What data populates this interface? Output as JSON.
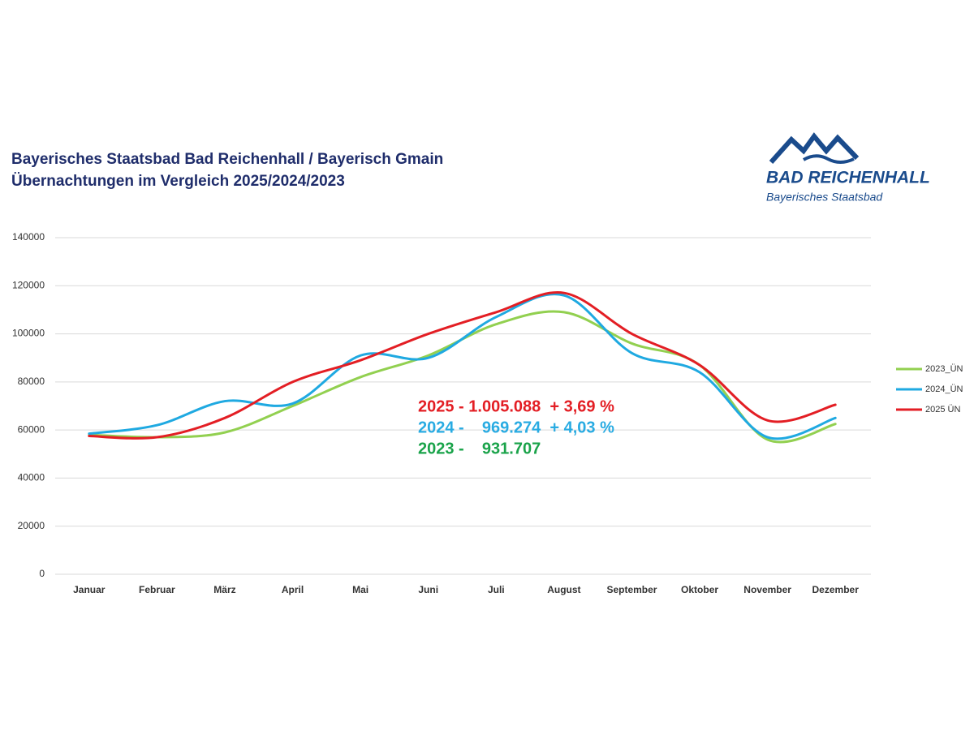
{
  "chart_data": {
    "type": "line",
    "title": "Bayerisches Staatsbad Bad Reichenhall / Bayerisch Gmain",
    "subtitle": "Übernachtungen im Vergleich 2025/2024/2023",
    "categories": [
      "Januar",
      "Februar",
      "März",
      "April",
      "Mai",
      "Juni",
      "Juli",
      "August",
      "September",
      "Oktober",
      "November",
      "Dezember"
    ],
    "series": [
      {
        "name": "2023_ÜN",
        "color": "#92d050",
        "values": [
          58000,
          57000,
          59000,
          70000,
          82000,
          91000,
          104000,
          109000,
          96000,
          87000,
          56000,
          62500
        ]
      },
      {
        "name": "2024_ÜN",
        "color": "#1fa9e1",
        "values": [
          58500,
          62000,
          72000,
          71000,
          91000,
          90000,
          107000,
          116000,
          92000,
          84000,
          57000,
          65000
        ]
      },
      {
        "name": "2025 ÜN",
        "color": "#e31e24",
        "values": [
          57500,
          57000,
          65000,
          80000,
          89000,
          100000,
          109000,
          117000,
          100000,
          87000,
          64000,
          70500
        ]
      }
    ],
    "ylim": [
      0,
      140000
    ],
    "yticks": [
      0,
      20000,
      40000,
      60000,
      80000,
      100000,
      120000,
      140000
    ],
    "grid": true,
    "smooth": true,
    "legend": "right",
    "annotations": [
      {
        "text": "2025 - 1.005.088  + 3,69 %",
        "color": "#e31e24"
      },
      {
        "text": "2024 -    969.274  + 4,03 %",
        "color": "#29abe2"
      },
      {
        "text": "2023 -    931.707",
        "color": "#1aa34a"
      }
    ]
  },
  "logo": {
    "name": "BAD REICHENHALL",
    "tagline": "Bayerisches Staatsbad"
  }
}
